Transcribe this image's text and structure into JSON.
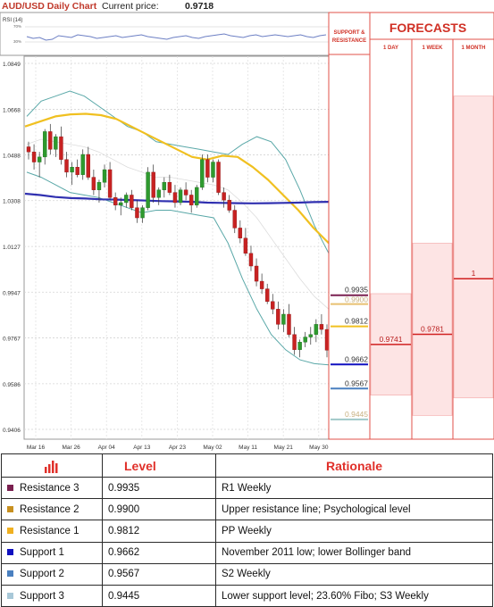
{
  "header": {
    "title": "AUD/USD Daily Chart",
    "price_label": "Current price:",
    "price_value": "0.9718"
  },
  "rsi": {
    "label": "RSI (14)",
    "upper": "70%",
    "lower": "30%"
  },
  "chart_data": {
    "type": "candlestick",
    "y_ticks": [
      "1.0849",
      "1.0668",
      "1.0488",
      "1.0308",
      "1.0127",
      "0.9947",
      "0.9767",
      "0.9586",
      "0.9406"
    ],
    "y_tick_values": [
      1.0849,
      1.0668,
      1.0488,
      1.0308,
      1.0127,
      0.9947,
      0.9767,
      0.9586,
      0.9406
    ],
    "x_ticks": [
      "Mar 16",
      "Mar 26",
      "Apr 04",
      "Apr 13",
      "Apr 23",
      "May 02",
      "May 11",
      "May 21",
      "May 30"
    ],
    "ylim": [
      0.9406,
      1.0849
    ],
    "grid": true,
    "candles": [
      [
        1.052,
        1.054,
        1.047,
        1.05
      ],
      [
        1.05,
        1.053,
        1.043,
        1.046
      ],
      [
        1.046,
        1.05,
        1.04,
        1.048
      ],
      [
        1.048,
        1.059,
        1.045,
        1.058
      ],
      [
        1.058,
        1.061,
        1.049,
        1.051
      ],
      [
        1.051,
        1.057,
        1.048,
        1.056
      ],
      [
        1.056,
        1.06,
        1.045,
        1.047
      ],
      [
        1.047,
        1.05,
        1.04,
        1.042
      ],
      [
        1.042,
        1.046,
        1.037,
        1.044
      ],
      [
        1.044,
        1.047,
        1.04,
        1.041
      ],
      [
        1.041,
        1.051,
        1.039,
        1.049
      ],
      [
        1.049,
        1.052,
        1.039,
        1.04
      ],
      [
        1.04,
        1.043,
        1.033,
        1.035
      ],
      [
        1.035,
        1.039,
        1.03,
        1.038
      ],
      [
        1.038,
        1.045,
        1.036,
        1.043
      ],
      [
        1.043,
        1.046,
        1.031,
        1.032
      ],
      [
        1.032,
        1.034,
        1.027,
        1.029
      ],
      [
        1.029,
        1.032,
        1.025,
        1.03
      ],
      [
        1.03,
        1.034,
        1.028,
        1.033
      ],
      [
        1.033,
        1.035,
        1.027,
        1.028
      ],
      [
        1.028,
        1.031,
        1.022,
        1.024
      ],
      [
        1.024,
        1.029,
        1.022,
        1.028
      ],
      [
        1.028,
        1.044,
        1.027,
        1.042
      ],
      [
        1.042,
        1.045,
        1.03,
        1.032
      ],
      [
        1.032,
        1.036,
        1.029,
        1.035
      ],
      [
        1.035,
        1.04,
        1.032,
        1.038
      ],
      [
        1.038,
        1.041,
        1.033,
        1.034
      ],
      [
        1.034,
        1.037,
        1.028,
        1.03
      ],
      [
        1.03,
        1.036,
        1.029,
        1.035
      ],
      [
        1.035,
        1.038,
        1.031,
        1.033
      ],
      [
        1.033,
        1.035,
        1.026,
        1.029
      ],
      [
        1.029,
        1.037,
        1.028,
        1.036
      ],
      [
        1.036,
        1.049,
        1.035,
        1.047
      ],
      [
        1.047,
        1.049,
        1.038,
        1.04
      ],
      [
        1.04,
        1.047,
        1.038,
        1.046
      ],
      [
        1.046,
        1.047,
        1.033,
        1.034
      ],
      [
        1.034,
        1.036,
        1.028,
        1.031
      ],
      [
        1.031,
        1.033,
        1.026,
        1.027
      ],
      [
        1.027,
        1.029,
        1.018,
        1.02
      ],
      [
        1.02,
        1.023,
        1.014,
        1.016
      ],
      [
        1.016,
        1.02,
        1.009,
        1.01
      ],
      [
        1.01,
        1.013,
        1.003,
        1.005
      ],
      [
        1.005,
        1.008,
        0.997,
        0.999
      ],
      [
        0.999,
        1.002,
        0.994,
        0.996
      ],
      [
        0.996,
        0.998,
        0.99,
        0.991
      ],
      [
        0.991,
        0.994,
        0.986,
        0.988
      ],
      [
        0.988,
        0.991,
        0.98,
        0.982
      ],
      [
        0.982,
        0.988,
        0.979,
        0.986
      ],
      [
        0.986,
        0.99,
        0.977,
        0.978
      ],
      [
        0.978,
        0.981,
        0.97,
        0.972
      ],
      [
        0.972,
        0.976,
        0.969,
        0.975
      ],
      [
        0.975,
        0.979,
        0.973,
        0.977
      ],
      [
        0.977,
        0.981,
        0.974,
        0.978
      ],
      [
        0.978,
        0.984,
        0.975,
        0.982
      ],
      [
        0.982,
        0.986,
        0.978,
        0.98
      ],
      [
        0.98,
        0.982,
        0.969,
        0.9718
      ]
    ],
    "moving_averages": [
      {
        "color": "#f0c020",
        "values": [
          1.06,
          1.062,
          1.064,
          1.0648,
          1.065,
          1.0645,
          1.063,
          1.06,
          1.057,
          1.054,
          1.051,
          1.048,
          1.047,
          1.0485,
          1.048,
          1.044,
          1.039,
          1.033,
          1.027,
          1.02,
          1.014
        ]
      },
      {
        "color": "#3030b0",
        "values": [
          1.0335,
          1.033,
          1.0322,
          1.0318,
          1.0316,
          1.0313,
          1.0312,
          1.031,
          1.0308,
          1.0306,
          1.0305,
          1.0303,
          1.03,
          1.0299,
          1.0298,
          1.0297,
          1.0298,
          1.0299,
          1.03,
          1.0302,
          1.0303
        ]
      }
    ],
    "bollinger_bands": [
      {
        "color": "#5aa8a8",
        "values": [
          1.064,
          1.07,
          1.072,
          1.074,
          1.072,
          1.068,
          1.064,
          1.06,
          1.058,
          1.054,
          1.053,
          1.052,
          1.051,
          1.05,
          1.049,
          1.053,
          1.056,
          1.054,
          1.047,
          1.035,
          1.021,
          1.01
        ]
      },
      {
        "color": "#5aa8a8",
        "values": [
          1.042,
          1.04,
          1.037,
          1.034,
          1.033,
          1.032,
          1.03,
          1.028,
          1.026,
          1.027,
          1.027,
          1.026,
          1.025,
          1.024,
          1.014,
          1.0,
          0.988,
          0.978,
          0.972,
          0.968,
          0.9665,
          0.966
        ]
      }
    ]
  },
  "support_resistance": {
    "header_line1": "SUPPORT &",
    "header_line2": "RESISTANCE",
    "lines": [
      {
        "label": "0.9935",
        "value": 0.9935,
        "color": "#7a2050"
      },
      {
        "label": "0.9900",
        "value": 0.99,
        "color": "#e8c070"
      },
      {
        "label": "0.9812",
        "value": 0.9812,
        "color": "#f0c020"
      },
      {
        "label": "0.9662",
        "value": 0.9662,
        "color": "#1010c0"
      },
      {
        "label": "0.9567",
        "value": 0.9567,
        "color": "#4a80c0"
      },
      {
        "label": "0.9445",
        "value": 0.9445,
        "color": "#a0c8c8"
      }
    ]
  },
  "forecasts": {
    "title": "FORECASTS",
    "columns": [
      {
        "label": "1 DAY",
        "value": "0.9741",
        "point": 0.9741,
        "band": [
          0.9541,
          0.9941
        ]
      },
      {
        "label": "1 WEEK",
        "value": "0.9781",
        "point": 0.9781,
        "band": [
          0.9461,
          1.014
        ]
      },
      {
        "label": "1 MONTH",
        "value": "1",
        "point": 1.0,
        "band": [
          0.953,
          1.072
        ]
      }
    ]
  },
  "levels_table": {
    "header_level": "Level",
    "header_rationale": "Rationale",
    "rows": [
      {
        "name": "Resistance 3",
        "value": "0.9935",
        "rationale": "R1 Weekly",
        "color": "#7a2050"
      },
      {
        "name": "Resistance 2",
        "value": "0.9900",
        "rationale": "Upper resistance line; Psychological level",
        "color": "#c89020"
      },
      {
        "name": "Resistance 1",
        "value": "0.9812",
        "rationale": "PP Weekly",
        "color": "#f0b020"
      },
      {
        "name": "Support 1",
        "value": "0.9662",
        "rationale": "November 2011 low; lower Bollinger band",
        "color": "#1010c0"
      },
      {
        "name": "Support 2",
        "value": "0.9567",
        "rationale": "S2 Weekly",
        "color": "#4a80c0"
      },
      {
        "name": "Support 3",
        "value": "0.9445",
        "rationale": "Lower support level; 23.60% Fibo; S3 Weekly",
        "color": "#a8c8d8"
      }
    ]
  }
}
